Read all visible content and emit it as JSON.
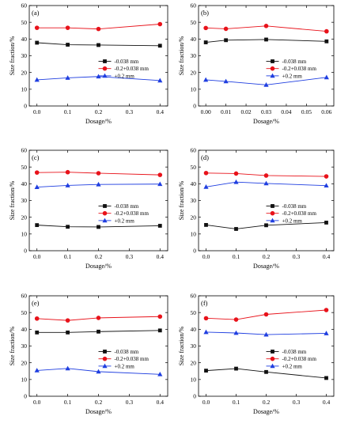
{
  "panel_letters": [
    "(a)",
    "(b)",
    "(c)",
    "(d)",
    "(e)",
    "(f)"
  ],
  "colors": {
    "series": [
      "#111111",
      "#e8121a",
      "#1f3ee0"
    ],
    "axis": "#000000",
    "background": "#ffffff"
  },
  "chart_data": [
    {
      "type": "line",
      "panel": "(a)",
      "xlabel": "Dosage/%",
      "ylabel": "Size fraction/%",
      "xlim": [
        -0.025,
        0.425
      ],
      "ylim": [
        0,
        60
      ],
      "xticks": [
        "0.0",
        "0.1",
        "0.2",
        "0.3",
        "0.4"
      ],
      "yticks": [
        "0",
        "10",
        "20",
        "30",
        "40",
        "50",
        "60"
      ],
      "grid": false,
      "legend_position": "right",
      "x": [
        0.0,
        0.1,
        0.2,
        0.4
      ],
      "series": [
        {
          "name": "-0.038 mm",
          "marker": "square",
          "values": [
            37.8,
            36.6,
            36.4,
            36.0
          ]
        },
        {
          "name": "-0.2+0.038 mm",
          "marker": "circle",
          "values": [
            46.7,
            46.7,
            46.0,
            48.9
          ]
        },
        {
          "name": "+0.2 mm",
          "marker": "triangle",
          "values": [
            15.6,
            16.8,
            17.6,
            15.2
          ]
        }
      ]
    },
    {
      "type": "line",
      "panel": "(b)",
      "xlabel": "Dosage/%",
      "ylabel": "Size fraction/%",
      "xlim": [
        -0.0036,
        0.0636
      ],
      "ylim": [
        0,
        60
      ],
      "xticks": [
        "0.00",
        "0.01",
        "0.02",
        "0.03",
        "0.04",
        "0.05",
        "0.06"
      ],
      "yticks": [
        "0",
        "10",
        "20",
        "30",
        "40",
        "50",
        "60"
      ],
      "grid": false,
      "legend_position": "right",
      "x": [
        0.0,
        0.01,
        0.03,
        0.06
      ],
      "series": [
        {
          "name": "-0.038 mm",
          "marker": "square",
          "values": [
            38.0,
            39.3,
            39.7,
            38.6
          ]
        },
        {
          "name": "-0.2+0.038 mm",
          "marker": "circle",
          "values": [
            46.6,
            46.1,
            47.8,
            44.6
          ]
        },
        {
          "name": "+0.2 mm",
          "marker": "triangle",
          "values": [
            15.6,
            14.7,
            12.6,
            17.1
          ]
        }
      ]
    },
    {
      "type": "line",
      "panel": "(c)",
      "xlabel": "Dosage/%",
      "ylabel": "Size fraction/%",
      "xlim": [
        -0.025,
        0.425
      ],
      "ylim": [
        0,
        60
      ],
      "xticks": [
        "0.0",
        "0.1",
        "0.2",
        "0.3",
        "0.4"
      ],
      "yticks": [
        "0",
        "10",
        "20",
        "30",
        "40",
        "50",
        "60"
      ],
      "grid": false,
      "legend_position": "right",
      "x": [
        0.0,
        0.1,
        0.2,
        0.4
      ],
      "series": [
        {
          "name": "-0.038 mm",
          "marker": "square",
          "values": [
            15.3,
            14.3,
            14.2,
            14.9
          ]
        },
        {
          "name": "-0.2+0.038 mm",
          "marker": "circle",
          "values": [
            46.7,
            46.9,
            46.3,
            45.3
          ]
        },
        {
          "name": "+0.2 mm",
          "marker": "triangle",
          "values": [
            38.0,
            39.0,
            39.6,
            39.8
          ]
        }
      ]
    },
    {
      "type": "line",
      "panel": "(d)",
      "xlabel": "Dosage/%",
      "ylabel": "Size fraction/%",
      "xlim": [
        -0.025,
        0.425
      ],
      "ylim": [
        0,
        60
      ],
      "xticks": [
        "0.0",
        "0.1",
        "0.2",
        "0.3",
        "0.4"
      ],
      "yticks": [
        "0",
        "10",
        "20",
        "30",
        "40",
        "50",
        "60"
      ],
      "grid": false,
      "legend_position": "right",
      "x": [
        0.0,
        0.1,
        0.2,
        0.4
      ],
      "series": [
        {
          "name": "-0.038 mm",
          "marker": "square",
          "values": [
            15.4,
            13.0,
            15.2,
            16.8
          ]
        },
        {
          "name": "-0.2+0.038 mm",
          "marker": "circle",
          "values": [
            46.4,
            46.1,
            44.9,
            44.4
          ]
        },
        {
          "name": "+0.2 mm",
          "marker": "triangle",
          "values": [
            38.1,
            41.0,
            40.2,
            38.9
          ]
        }
      ]
    },
    {
      "type": "line",
      "panel": "(e)",
      "xlabel": "Dosage/%",
      "ylabel": "Size fraction/%",
      "xlim": [
        -0.025,
        0.425
      ],
      "ylim": [
        0,
        60
      ],
      "xticks": [
        "0.0",
        "0.1",
        "0.2",
        "0.3",
        "0.4"
      ],
      "yticks": [
        "0",
        "10",
        "20",
        "30",
        "40",
        "50",
        "60"
      ],
      "grid": false,
      "legend_position": "right",
      "x": [
        0.0,
        0.1,
        0.2,
        0.4
      ],
      "series": [
        {
          "name": "-0.038 mm",
          "marker": "square",
          "values": [
            38.1,
            38.1,
            38.6,
            39.3
          ]
        },
        {
          "name": "-0.2+0.038 mm",
          "marker": "circle",
          "values": [
            46.4,
            45.3,
            46.8,
            47.6
          ]
        },
        {
          "name": "+0.2 mm",
          "marker": "triangle",
          "values": [
            15.4,
            16.6,
            14.7,
            13.1
          ]
        }
      ]
    },
    {
      "type": "line",
      "panel": "(f)",
      "xlabel": "Dosage/%",
      "ylabel": "Size fraction/%",
      "xlim": [
        -0.025,
        0.425
      ],
      "ylim": [
        0,
        60
      ],
      "xticks": [
        "0.0",
        "0.1",
        "0.2",
        "0.3",
        "0.4"
      ],
      "yticks": [
        "0",
        "10",
        "20",
        "30",
        "40",
        "50",
        "60"
      ],
      "grid": false,
      "legend_position": "right",
      "x": [
        0.0,
        0.1,
        0.2,
        0.4
      ],
      "series": [
        {
          "name": "-0.038 mm",
          "marker": "square",
          "values": [
            15.3,
            16.5,
            14.5,
            10.9
          ]
        },
        {
          "name": "-0.2+0.038 mm",
          "marker": "circle",
          "values": [
            46.6,
            45.8,
            48.9,
            51.5
          ]
        },
        {
          "name": "+0.2 mm",
          "marker": "triangle",
          "values": [
            38.3,
            37.8,
            36.8,
            37.6
          ]
        }
      ]
    }
  ]
}
